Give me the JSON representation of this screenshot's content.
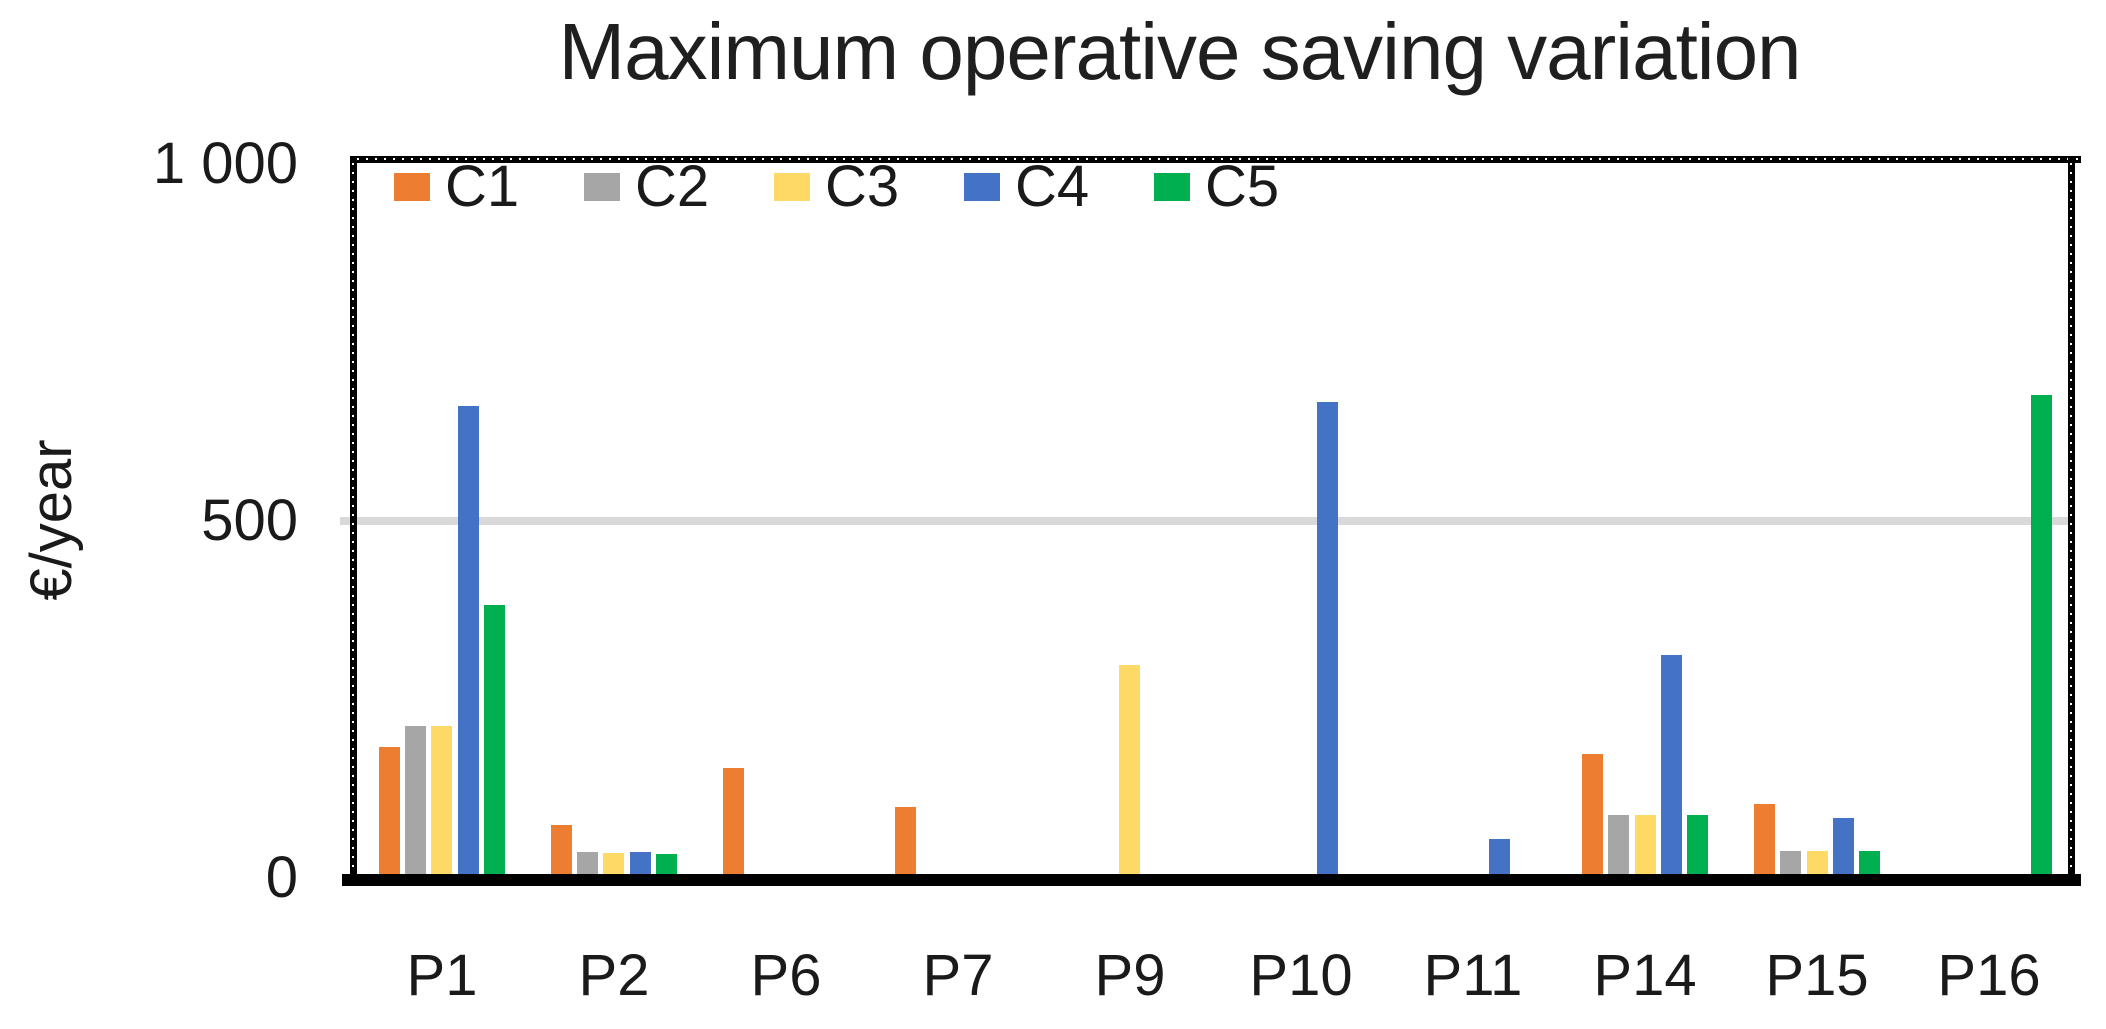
{
  "title": "Maximum operative saving variation",
  "y_axis": {
    "label": "€/year",
    "ticks": [
      "1 000",
      "500",
      "0"
    ],
    "min": 0,
    "max": 1000
  },
  "legend": [
    "C1",
    "C2",
    "C3",
    "C4",
    "C5"
  ],
  "colors": {
    "C1": "#ED7D31",
    "C2": "#A6A6A6",
    "C3": "#FFD966",
    "C4": "#4472C4",
    "C5": "#00B050",
    "gridline": "#D9D9D9",
    "axis": "#000000",
    "text": "#1f1f1f"
  },
  "chart_data": {
    "type": "bar",
    "title": "Maximum operative saving variation",
    "xlabel": "",
    "ylabel": "€/year",
    "ylim": [
      0,
      1000
    ],
    "yticks": [
      0,
      500,
      1000
    ],
    "grid": "single horizontal gridline at 500",
    "legend_position": "top-left inside plot area",
    "categories": [
      "P1",
      "P2",
      "P6",
      "P7",
      "P9",
      "P10",
      "P11",
      "P14",
      "P15",
      "P16"
    ],
    "series": [
      {
        "name": "C1",
        "color": "#ED7D31",
        "values": [
          180,
          70,
          150,
          95,
          0,
          0,
          0,
          170,
          100,
          0
        ]
      },
      {
        "name": "C2",
        "color": "#A6A6A6",
        "values": [
          210,
          33,
          0,
          0,
          0,
          0,
          0,
          85,
          34,
          0
        ]
      },
      {
        "name": "C3",
        "color": "#FFD966",
        "values": [
          210,
          31,
          0,
          0,
          295,
          0,
          0,
          85,
          34,
          0
        ]
      },
      {
        "name": "C4",
        "color": "#4472C4",
        "values": [
          660,
          32,
          0,
          0,
          0,
          665,
          50,
          310,
          80,
          0
        ]
      },
      {
        "name": "C5",
        "color": "#00B050",
        "values": [
          380,
          30,
          0,
          0,
          0,
          0,
          0,
          85,
          34,
          675
        ]
      }
    ]
  }
}
